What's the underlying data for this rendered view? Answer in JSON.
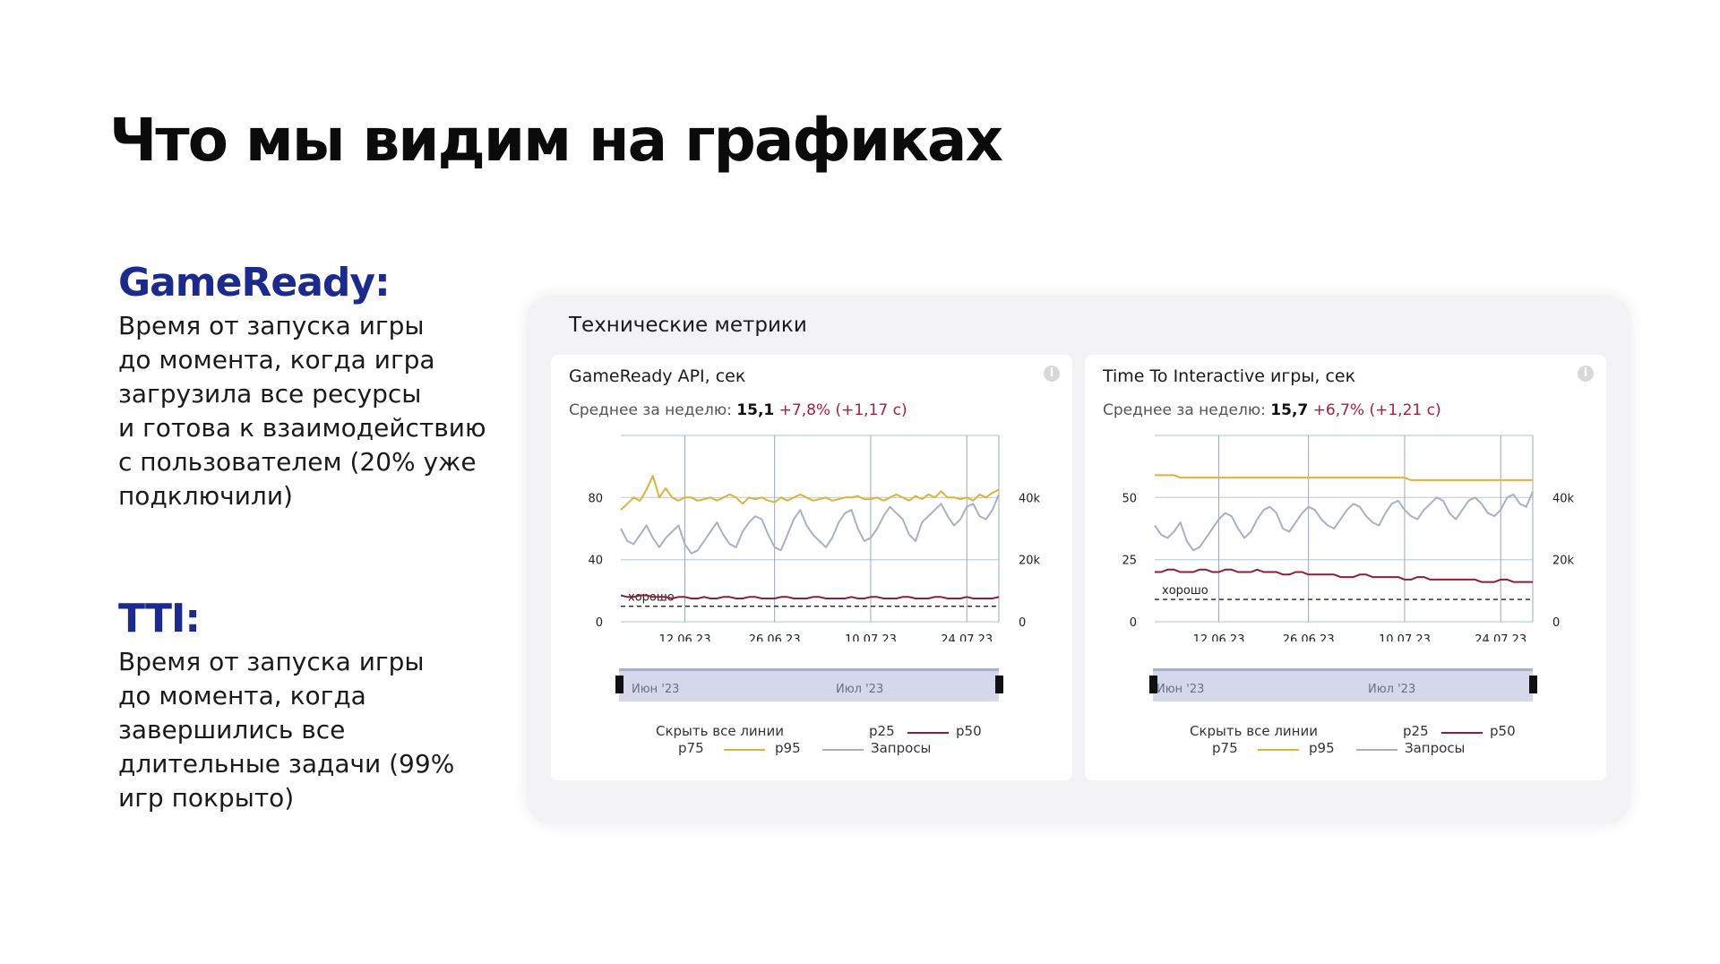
{
  "slide": {
    "title": "Что мы видим на графиках"
  },
  "sections": [
    {
      "heading": "GameReady:",
      "lines": [
        "Время от запуска игры",
        "до момента, когда игра",
        "загрузила все ресурсы",
        "и готова к взаимодействию",
        "с пользователем (20% уже",
        "подключили)"
      ]
    },
    {
      "heading": "TTI:",
      "lines": [
        "Время от запуска игры",
        "до момента, когда",
        "завершились все",
        "длительные задачи (99%",
        "игр покрыто)"
      ]
    }
  ],
  "panel": {
    "title": "Технические метрики"
  },
  "cards": [
    {
      "title": "GameReady API, сек",
      "avg_label": "Среднее за неделю:",
      "avg_value": "15,1",
      "avg_delta": "+7,8% (+1,17 с)",
      "range_left": "Июн '23",
      "range_right": "Июл '23"
    },
    {
      "title": "Time To Interactive игры, сек",
      "avg_label": "Среднее за неделю:",
      "avg_value": "15,7",
      "avg_delta": "+6,7% (+1,21 с)",
      "range_left": "Июн '23",
      "range_right": "Июл '23"
    }
  ],
  "legend": {
    "hide_all": "Скрыть все линии",
    "p25": "p25",
    "p50": "p50",
    "p75": "p75",
    "p95": "p95",
    "requests": "Запросы"
  },
  "colors": {
    "accent_heading": "#1c2a8c",
    "p95": "#e0b13a",
    "p50": "#8b1f3a",
    "requests": "#a9b0c4",
    "delta": "#a3213d"
  },
  "chart_data": [
    {
      "type": "line",
      "title": "GameReady API, сек",
      "x_ticks": [
        "12.06.23",
        "26.06.23",
        "10.07.23",
        "24.07.23"
      ],
      "y_left_ticks": [
        "0",
        "40",
        "80"
      ],
      "y_right_ticks": [
        "0",
        "20k",
        "40k"
      ],
      "ylim_left": [
        0,
        120
      ],
      "annotation": "хорошо",
      "threshold": 10,
      "series": [
        {
          "name": "p95",
          "axis": "left",
          "values": [
            72,
            76,
            80,
            78,
            85,
            94,
            80,
            86,
            80,
            78,
            80,
            80,
            78,
            79,
            80,
            78,
            80,
            82,
            80,
            76,
            80,
            79,
            80,
            78,
            77,
            80,
            78,
            80,
            82,
            80,
            78,
            79,
            80,
            78,
            79,
            80,
            80,
            81,
            79,
            79,
            80,
            78,
            80,
            82,
            80,
            78,
            81,
            79,
            82,
            80,
            84,
            80,
            80,
            79,
            80,
            78,
            82,
            80,
            83,
            85
          ]
        },
        {
          "name": "Запросы",
          "axis": "right",
          "values": [
            30,
            26,
            25,
            28,
            31,
            27,
            24,
            27,
            29,
            31,
            25,
            22,
            23,
            26,
            29,
            32,
            28,
            25,
            24,
            29,
            32,
            34,
            33,
            28,
            24,
            23,
            28,
            33,
            36,
            31,
            28,
            26,
            24,
            27,
            32,
            35,
            36,
            30,
            26,
            27,
            30,
            34,
            37,
            35,
            33,
            28,
            26,
            32,
            34,
            36,
            38,
            34,
            31,
            33,
            37,
            38,
            34,
            33,
            36,
            41
          ]
        },
        {
          "name": "p50",
          "axis": "left",
          "values": [
            17,
            16,
            16,
            17,
            17,
            16,
            16,
            16,
            15,
            16,
            16,
            15,
            15,
            16,
            15,
            15,
            16,
            16,
            15,
            15,
            16,
            16,
            15,
            15,
            15,
            16,
            16,
            15,
            15,
            15,
            16,
            16,
            15,
            15,
            15,
            15,
            16,
            15,
            15,
            16,
            16,
            15,
            15,
            15,
            16,
            16,
            15,
            15,
            15,
            16,
            16,
            15,
            15,
            15,
            16,
            15,
            15,
            15,
            15,
            16
          ]
        }
      ]
    },
    {
      "type": "line",
      "title": "Time To Interactive игры, сек",
      "x_ticks": [
        "12.06.23",
        "26.06.23",
        "10.07.23",
        "24.07.23"
      ],
      "y_left_ticks": [
        "0",
        "25",
        "50"
      ],
      "y_right_ticks": [
        "0",
        "20k",
        "40k"
      ],
      "ylim_left": [
        0,
        75
      ],
      "annotation": "хорошо",
      "threshold": 9,
      "series": [
        {
          "name": "p95",
          "axis": "left",
          "values": [
            59,
            59,
            59,
            59,
            58,
            58,
            58,
            58,
            58,
            58,
            58,
            58,
            58,
            58,
            58,
            58,
            58,
            58,
            58,
            58,
            58,
            58,
            58,
            58,
            58,
            58,
            58,
            58,
            58,
            58,
            58,
            58,
            58,
            58,
            58,
            58,
            58,
            58,
            58,
            58,
            57,
            57,
            57,
            57,
            57,
            57,
            57,
            57,
            57,
            57,
            57,
            57,
            57,
            57,
            57,
            57,
            57,
            57,
            57,
            57
          ]
        },
        {
          "name": "Запросы",
          "axis": "right",
          "values": [
            31,
            28,
            27,
            29,
            32,
            26,
            23,
            24,
            27,
            30,
            33,
            35,
            34,
            30,
            27,
            29,
            33,
            36,
            37,
            35,
            30,
            29,
            32,
            35,
            37,
            36,
            33,
            31,
            30,
            33,
            36,
            38,
            37,
            34,
            32,
            31,
            35,
            38,
            39,
            36,
            34,
            33,
            36,
            38,
            40,
            39,
            35,
            33,
            36,
            39,
            40,
            38,
            35,
            34,
            36,
            40,
            41,
            38,
            37,
            42
          ]
        },
        {
          "name": "p50",
          "axis": "left",
          "values": [
            20,
            20,
            21,
            21,
            20,
            20,
            20,
            21,
            21,
            20,
            20,
            21,
            21,
            20,
            20,
            20,
            21,
            20,
            20,
            20,
            19,
            19,
            20,
            20,
            19,
            19,
            19,
            19,
            19,
            18,
            18,
            18,
            19,
            19,
            18,
            18,
            18,
            18,
            18,
            17,
            17,
            18,
            18,
            17,
            17,
            17,
            17,
            17,
            17,
            17,
            17,
            16,
            16,
            16,
            17,
            17,
            16,
            16,
            16,
            16
          ]
        }
      ]
    }
  ]
}
